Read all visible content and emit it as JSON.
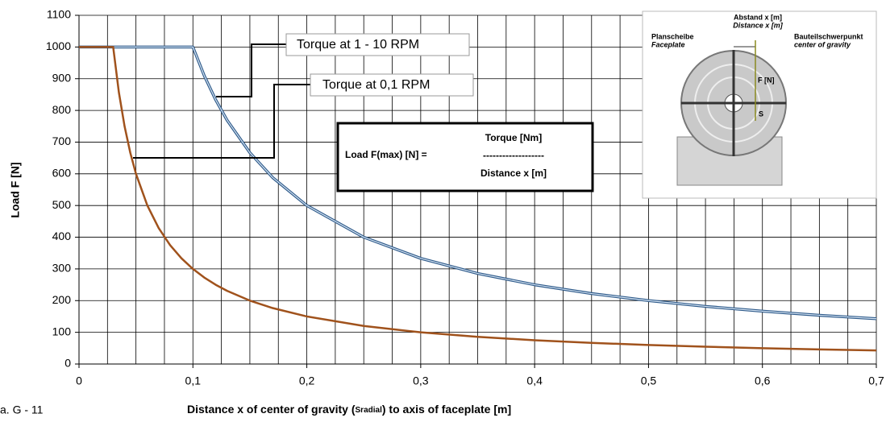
{
  "chart_data": {
    "type": "line",
    "ylabel": "Load F [N]",
    "xlabel_parts": [
      "Distance x of center of gravity (",
      "Sradial",
      ") to axis of faceplate [m]"
    ],
    "footnote": "a. G - 11",
    "x": [
      0,
      0.03,
      0.035,
      0.04,
      0.045,
      0.05,
      0.06,
      0.07,
      0.08,
      0.09,
      0.1,
      0.11,
      0.12,
      0.13,
      0.15,
      0.17,
      0.2,
      0.25,
      0.3,
      0.35,
      0.4,
      0.45,
      0.5,
      0.55,
      0.6,
      0.65,
      0.7
    ],
    "series": [
      {
        "name": "Torque at 1 - 10 RPM",
        "color": "#2e5a8a",
        "values": [
          1000,
          1000,
          1000,
          1000,
          1000,
          1000,
          1000,
          1000,
          1000,
          1000,
          1000,
          909.1,
          833.3,
          769.2,
          666.7,
          588.2,
          500,
          400,
          333.3,
          285.7,
          250,
          222.2,
          200,
          181.8,
          166.7,
          153.8,
          142.9
        ]
      },
      {
        "name": "Torque at 0,1 RPM",
        "color": "#a0521c",
        "values": [
          1000,
          1000,
          857.1,
          750,
          666.7,
          600,
          500,
          428.6,
          375,
          333.3,
          300,
          272.7,
          250,
          230.8,
          200,
          176.5,
          150,
          120,
          100,
          85.7,
          75,
          66.7,
          60,
          54.5,
          50,
          46.2,
          42.9
        ]
      }
    ],
    "xlim": [
      0,
      0.7
    ],
    "ylim": [
      0,
      1100
    ],
    "xticks": [
      0,
      {
        "value": 0.1,
        "label": "0,1"
      },
      {
        "value": 0.2,
        "label": "0,2"
      },
      {
        "value": 0.3,
        "label": "0,3"
      },
      {
        "value": 0.4,
        "label": "0,4"
      },
      {
        "value": 0.5,
        "label": "0,5"
      },
      {
        "value": 0.6,
        "label": "0,6"
      },
      {
        "value": 0.7,
        "label": "0,7"
      }
    ],
    "xminorticks": [
      0.025,
      0.05,
      0.075,
      0.125,
      0.15,
      0.175,
      0.225,
      0.25,
      0.275,
      0.325,
      0.35,
      0.375,
      0.425,
      0.45,
      0.475,
      0.525,
      0.55,
      0.575,
      0.625,
      0.65,
      0.675
    ],
    "yticks": [
      0,
      100,
      200,
      300,
      400,
      500,
      600,
      700,
      800,
      900,
      1000,
      1100
    ],
    "grid": true,
    "formula": {
      "lhs": "Load F(max) [N] =",
      "numerator": "Torque [Nm]",
      "bar": "-------------------",
      "denominator": "Distance x [m]"
    },
    "inset": {
      "distance_de": "Abstand x [m]",
      "distance_en": "Distance x [m]",
      "faceplate_de": "Planscheibe",
      "faceplate_en": "Faceplate",
      "cog_de": "Bauteilschwerpunkt",
      "cog_en": "center of gravity",
      "force": "F [N]",
      "point": "S"
    }
  }
}
